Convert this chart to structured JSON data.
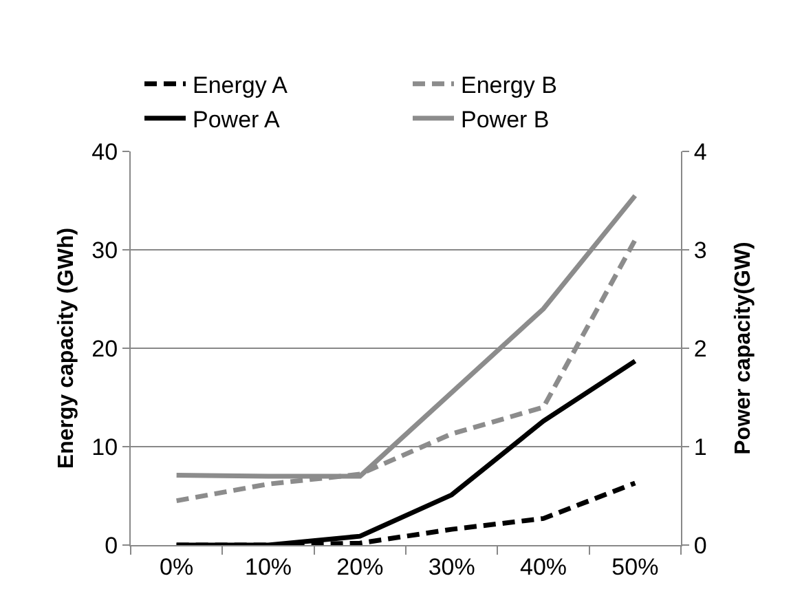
{
  "chart_data": {
    "type": "line",
    "categories": [
      "0%",
      "10%",
      "20%",
      "30%",
      "40%",
      "50%"
    ],
    "ylabel": "Energy capacity (GWh)",
    "y2label": "Power capacity(GW)",
    "ylim": [
      0,
      40
    ],
    "yticks": [
      0,
      10,
      20,
      30,
      40
    ],
    "y2lim": [
      0,
      4
    ],
    "y2ticks": [
      0,
      1,
      2,
      3,
      4
    ],
    "grid": "y",
    "legend": "top",
    "marker": "none",
    "series": [
      {
        "name": "Energy A",
        "color": "#000000",
        "line_style": "dashed",
        "values": [
          0,
          0,
          0.2,
          1.6,
          2.7,
          6.3
        ]
      },
      {
        "name": "Energy B",
        "color": "#8c8c8c",
        "line_style": "dashed",
        "values": [
          4.5,
          6.2,
          7.2,
          11.3,
          14,
          31
        ]
      },
      {
        "name": "Power A",
        "color": "#000000",
        "line_style": "solid",
        "axis": "y2",
        "values": [
          0,
          0,
          0.09,
          0.51,
          1.26,
          1.87
        ]
      },
      {
        "name": "Power B",
        "color": "#8c8c8c",
        "line_style": "solid",
        "axis": "y2",
        "values": [
          0.71,
          0.7,
          0.7,
          1.55,
          2.4,
          3.55
        ]
      }
    ]
  }
}
